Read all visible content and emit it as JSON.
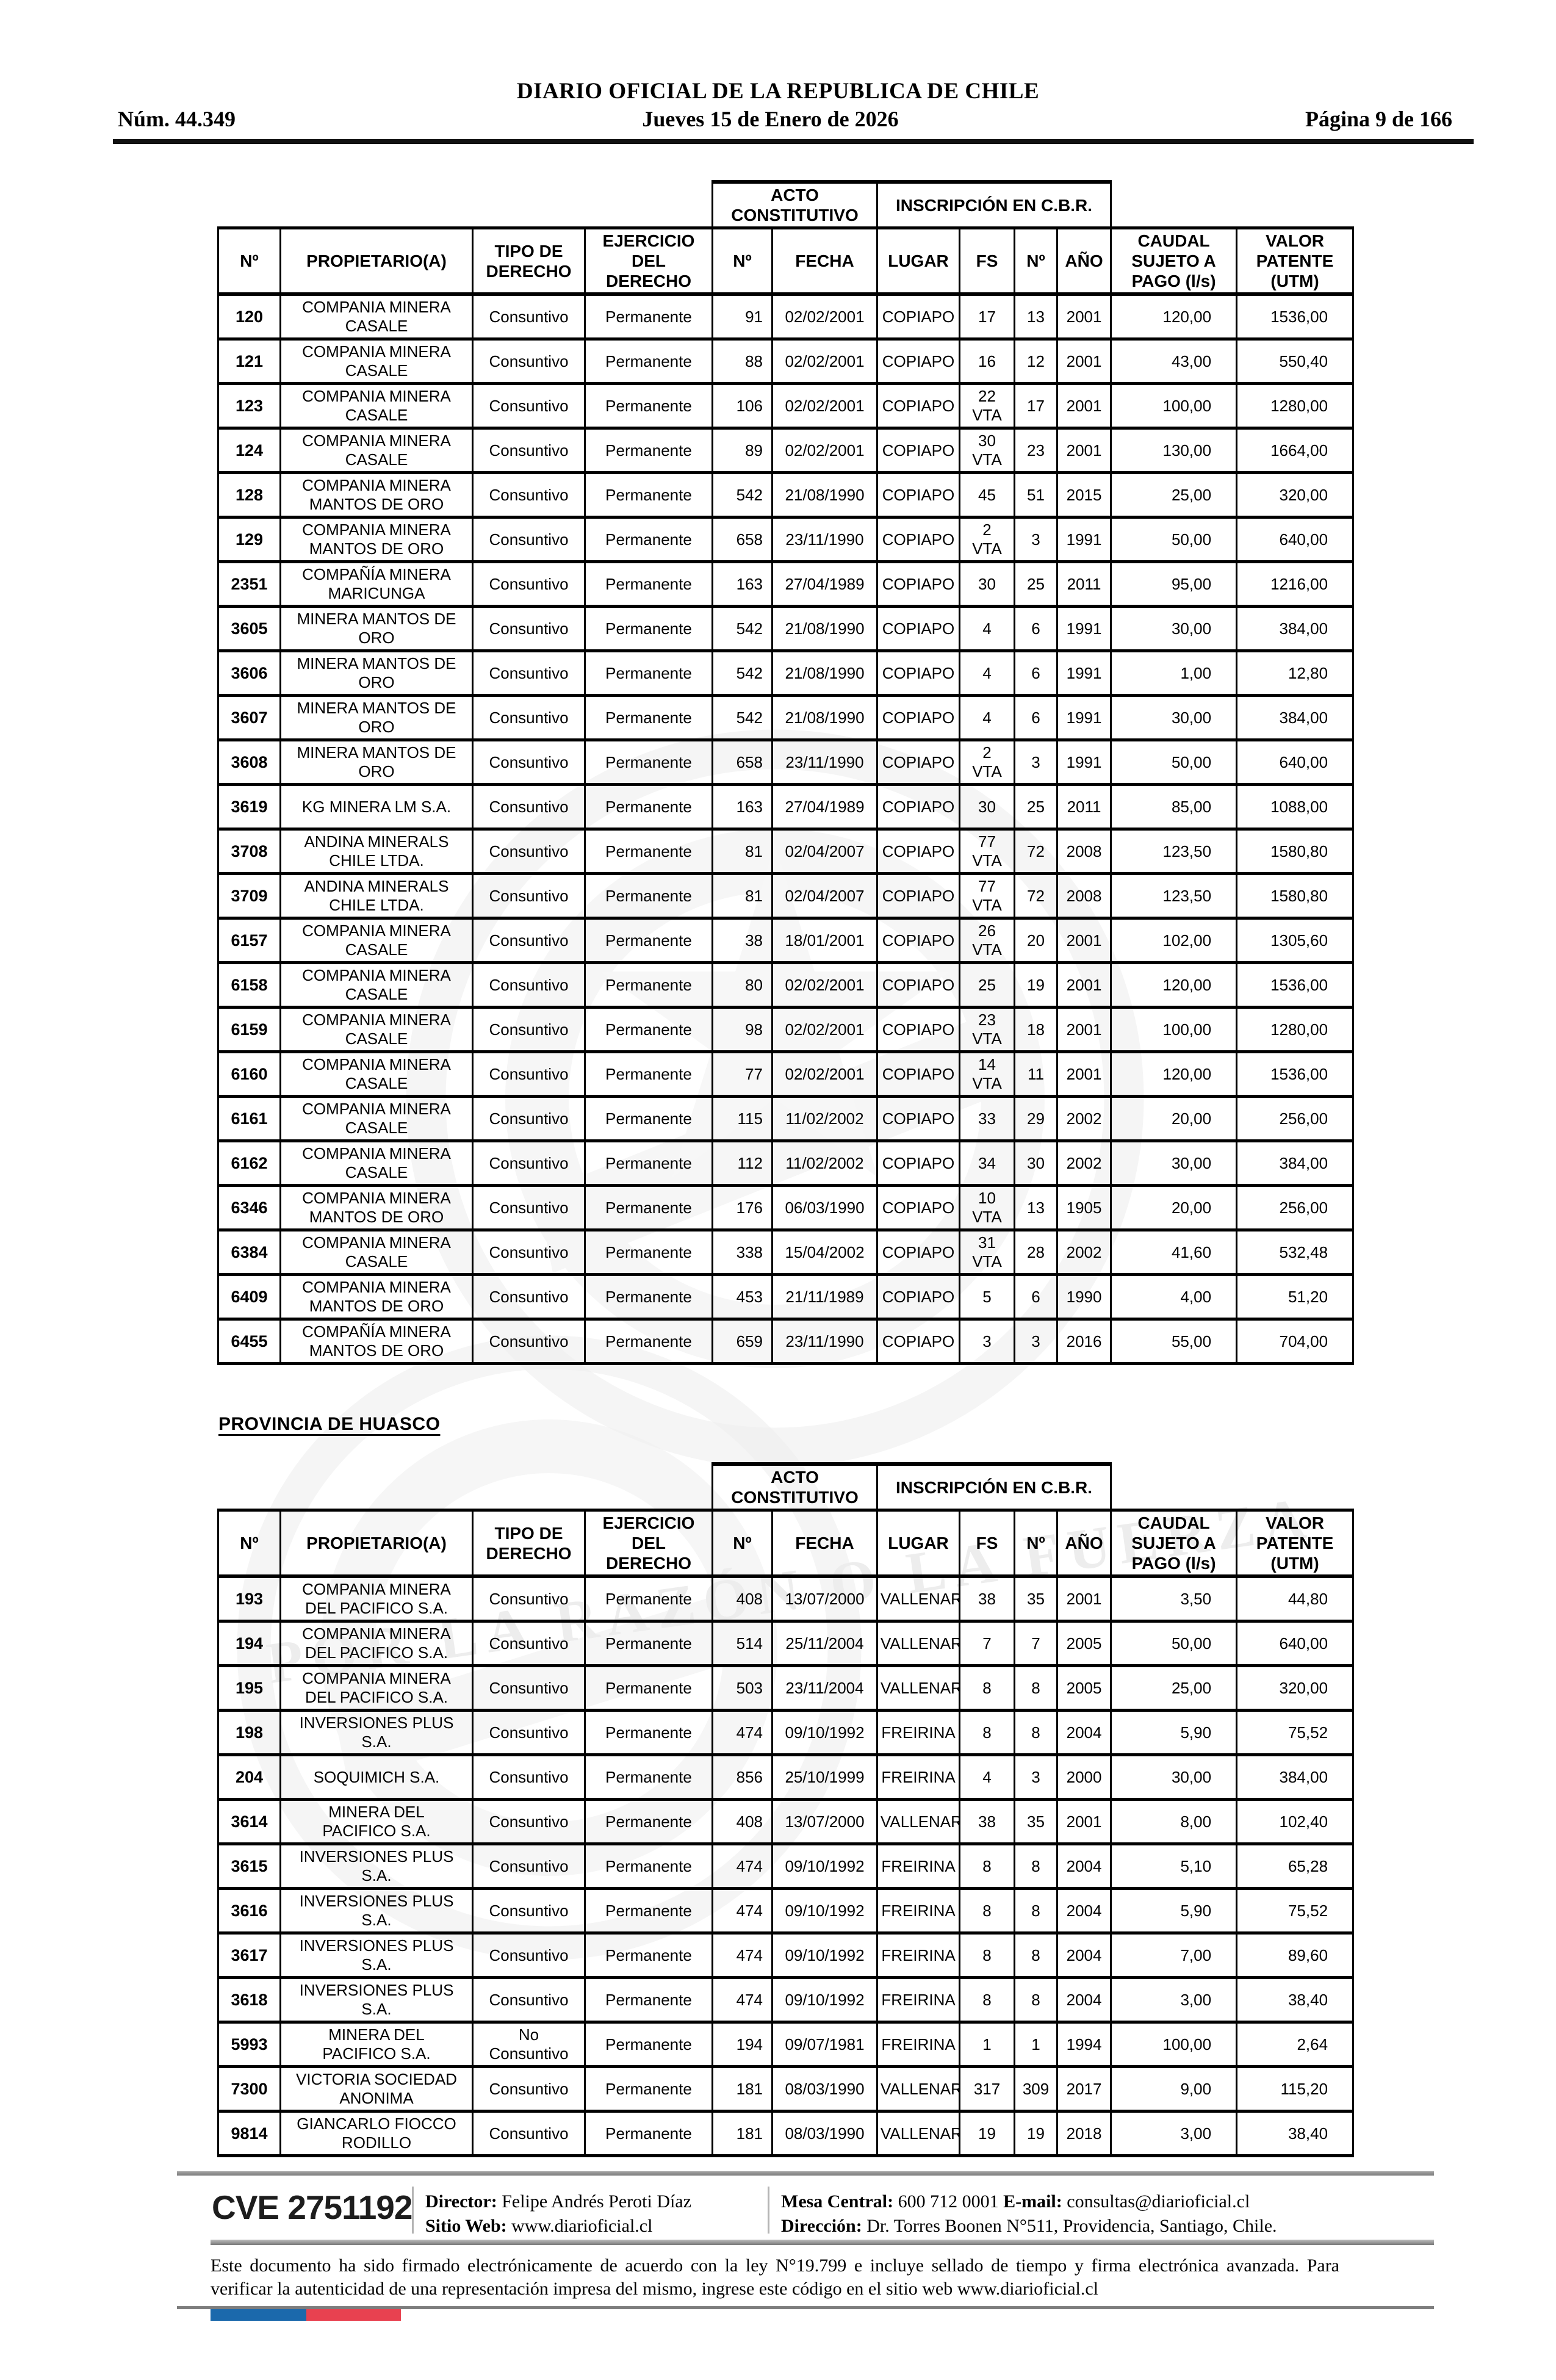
{
  "header": {
    "issue": "Núm. 44.349",
    "title": "DIARIO OFICIAL DE LA REPUBLICA DE CHILE",
    "date": "Jueves 15 de Enero de 2026",
    "page": "Página 9 de 166"
  },
  "group_headers": {
    "acto": "ACTO\nCONSTITUTIVO",
    "inscripcion": "INSCRIPCIÓN EN C.B.R."
  },
  "columns": [
    "Nº",
    "PROPIETARIO(A)",
    "TIPO DE\nDERECHO",
    "EJERCICIO\nDEL\nDERECHO",
    "Nº",
    "FECHA",
    "LUGAR",
    "FS",
    "Nº",
    "AÑO",
    "CAUDAL\nSUJETO A\nPAGO (l/s)",
    "VALOR\nPATENTE\n(UTM)"
  ],
  "section2_title": "PROVINCIA DE HUASCO",
  "watermark_motto": "POR LA RAZÓN O LA FUERZA",
  "table1": {
    "rows": [
      [
        "120",
        "COMPANIA MINERA\nCASALE",
        "Consuntivo",
        "Permanente",
        "91",
        "02/02/2001",
        "COPIAPO",
        "17",
        "13",
        "2001",
        "120,00",
        "1536,00"
      ],
      [
        "121",
        "COMPANIA MINERA\nCASALE",
        "Consuntivo",
        "Permanente",
        "88",
        "02/02/2001",
        "COPIAPO",
        "16",
        "12",
        "2001",
        "43,00",
        "550,40"
      ],
      [
        "123",
        "COMPANIA MINERA\nCASALE",
        "Consuntivo",
        "Permanente",
        "106",
        "02/02/2001",
        "COPIAPO",
        "22\nVTA",
        "17",
        "2001",
        "100,00",
        "1280,00"
      ],
      [
        "124",
        "COMPANIA MINERA\nCASALE",
        "Consuntivo",
        "Permanente",
        "89",
        "02/02/2001",
        "COPIAPO",
        "30\nVTA",
        "23",
        "2001",
        "130,00",
        "1664,00"
      ],
      [
        "128",
        "COMPANIA MINERA\nMANTOS DE ORO",
        "Consuntivo",
        "Permanente",
        "542",
        "21/08/1990",
        "COPIAPO",
        "45",
        "51",
        "2015",
        "25,00",
        "320,00"
      ],
      [
        "129",
        "COMPANIA MINERA\nMANTOS DE ORO",
        "Consuntivo",
        "Permanente",
        "658",
        "23/11/1990",
        "COPIAPO",
        "2\nVTA",
        "3",
        "1991",
        "50,00",
        "640,00"
      ],
      [
        "2351",
        "COMPAÑÍA MINERA\nMARICUNGA",
        "Consuntivo",
        "Permanente",
        "163",
        "27/04/1989",
        "COPIAPO",
        "30",
        "25",
        "2011",
        "95,00",
        "1216,00"
      ],
      [
        "3605",
        "MINERA MANTOS DE\nORO",
        "Consuntivo",
        "Permanente",
        "542",
        "21/08/1990",
        "COPIAPO",
        "4",
        "6",
        "1991",
        "30,00",
        "384,00"
      ],
      [
        "3606",
        "MINERA MANTOS DE\nORO",
        "Consuntivo",
        "Permanente",
        "542",
        "21/08/1990",
        "COPIAPO",
        "4",
        "6",
        "1991",
        "1,00",
        "12,80"
      ],
      [
        "3607",
        "MINERA MANTOS DE\nORO",
        "Consuntivo",
        "Permanente",
        "542",
        "21/08/1990",
        "COPIAPO",
        "4",
        "6",
        "1991",
        "30,00",
        "384,00"
      ],
      [
        "3608",
        "MINERA MANTOS DE\nORO",
        "Consuntivo",
        "Permanente",
        "658",
        "23/11/1990",
        "COPIAPO",
        "2\nVTA",
        "3",
        "1991",
        "50,00",
        "640,00"
      ],
      [
        "3619",
        "KG MINERA LM S.A.",
        "Consuntivo",
        "Permanente",
        "163",
        "27/04/1989",
        "COPIAPO",
        "30",
        "25",
        "2011",
        "85,00",
        "1088,00"
      ],
      [
        "3708",
        "ANDINA MINERALS\nCHILE LTDA.",
        "Consuntivo",
        "Permanente",
        "81",
        "02/04/2007",
        "COPIAPO",
        "77\nVTA",
        "72",
        "2008",
        "123,50",
        "1580,80"
      ],
      [
        "3709",
        "ANDINA MINERALS\nCHILE LTDA.",
        "Consuntivo",
        "Permanente",
        "81",
        "02/04/2007",
        "COPIAPO",
        "77\nVTA",
        "72",
        "2008",
        "123,50",
        "1580,80"
      ],
      [
        "6157",
        "COMPANIA MINERA\nCASALE",
        "Consuntivo",
        "Permanente",
        "38",
        "18/01/2001",
        "COPIAPO",
        "26\nVTA",
        "20",
        "2001",
        "102,00",
        "1305,60"
      ],
      [
        "6158",
        "COMPANIA MINERA\nCASALE",
        "Consuntivo",
        "Permanente",
        "80",
        "02/02/2001",
        "COPIAPO",
        "25",
        "19",
        "2001",
        "120,00",
        "1536,00"
      ],
      [
        "6159",
        "COMPANIA MINERA\nCASALE",
        "Consuntivo",
        "Permanente",
        "98",
        "02/02/2001",
        "COPIAPO",
        "23\nVTA",
        "18",
        "2001",
        "100,00",
        "1280,00"
      ],
      [
        "6160",
        "COMPANIA MINERA\nCASALE",
        "Consuntivo",
        "Permanente",
        "77",
        "02/02/2001",
        "COPIAPO",
        "14\nVTA",
        "11",
        "2001",
        "120,00",
        "1536,00"
      ],
      [
        "6161",
        "COMPANIA MINERA\nCASALE",
        "Consuntivo",
        "Permanente",
        "115",
        "11/02/2002",
        "COPIAPO",
        "33",
        "29",
        "2002",
        "20,00",
        "256,00"
      ],
      [
        "6162",
        "COMPANIA MINERA\nCASALE",
        "Consuntivo",
        "Permanente",
        "112",
        "11/02/2002",
        "COPIAPO",
        "34",
        "30",
        "2002",
        "30,00",
        "384,00"
      ],
      [
        "6346",
        "COMPANIA MINERA\nMANTOS DE ORO",
        "Consuntivo",
        "Permanente",
        "176",
        "06/03/1990",
        "COPIAPO",
        "10\nVTA",
        "13",
        "1905",
        "20,00",
        "256,00"
      ],
      [
        "6384",
        "COMPANIA MINERA\nCASALE",
        "Consuntivo",
        "Permanente",
        "338",
        "15/04/2002",
        "COPIAPO",
        "31\nVTA",
        "28",
        "2002",
        "41,60",
        "532,48"
      ],
      [
        "6409",
        "COMPANIA MINERA\nMANTOS DE ORO",
        "Consuntivo",
        "Permanente",
        "453",
        "21/11/1989",
        "COPIAPO",
        "5",
        "6",
        "1990",
        "4,00",
        "51,20"
      ],
      [
        "6455",
        "COMPAÑÍA MINERA\nMANTOS DE ORO",
        "Consuntivo",
        "Permanente",
        "659",
        "23/11/1990",
        "COPIAPO",
        "3",
        "3",
        "2016",
        "55,00",
        "704,00"
      ]
    ]
  },
  "table2": {
    "rows": [
      [
        "193",
        "COMPANIA MINERA\nDEL PACIFICO S.A.",
        "Consuntivo",
        "Permanente",
        "408",
        "13/07/2000",
        "VALLENAR",
        "38",
        "35",
        "2001",
        "3,50",
        "44,80"
      ],
      [
        "194",
        "COMPANIA MINERA\nDEL PACIFICO S.A.",
        "Consuntivo",
        "Permanente",
        "514",
        "25/11/2004",
        "VALLENAR",
        "7",
        "7",
        "2005",
        "50,00",
        "640,00"
      ],
      [
        "195",
        "COMPANIA MINERA\nDEL PACIFICO S.A.",
        "Consuntivo",
        "Permanente",
        "503",
        "23/11/2004",
        "VALLENAR",
        "8",
        "8",
        "2005",
        "25,00",
        "320,00"
      ],
      [
        "198",
        "INVERSIONES PLUS\nS.A.",
        "Consuntivo",
        "Permanente",
        "474",
        "09/10/1992",
        "FREIRINA",
        "8",
        "8",
        "2004",
        "5,90",
        "75,52"
      ],
      [
        "204",
        "SOQUIMICH S.A.",
        "Consuntivo",
        "Permanente",
        "856",
        "25/10/1999",
        "FREIRINA",
        "4",
        "3",
        "2000",
        "30,00",
        "384,00"
      ],
      [
        "3614",
        "MINERA DEL\nPACIFICO S.A.",
        "Consuntivo",
        "Permanente",
        "408",
        "13/07/2000",
        "VALLENAR",
        "38",
        "35",
        "2001",
        "8,00",
        "102,40"
      ],
      [
        "3615",
        "INVERSIONES PLUS\nS.A.",
        "Consuntivo",
        "Permanente",
        "474",
        "09/10/1992",
        "FREIRINA",
        "8",
        "8",
        "2004",
        "5,10",
        "65,28"
      ],
      [
        "3616",
        "INVERSIONES PLUS\nS.A.",
        "Consuntivo",
        "Permanente",
        "474",
        "09/10/1992",
        "FREIRINA",
        "8",
        "8",
        "2004",
        "5,90",
        "75,52"
      ],
      [
        "3617",
        "INVERSIONES PLUS\nS.A.",
        "Consuntivo",
        "Permanente",
        "474",
        "09/10/1992",
        "FREIRINA",
        "8",
        "8",
        "2004",
        "7,00",
        "89,60"
      ],
      [
        "3618",
        "INVERSIONES PLUS\nS.A.",
        "Consuntivo",
        "Permanente",
        "474",
        "09/10/1992",
        "FREIRINA",
        "8",
        "8",
        "2004",
        "3,00",
        "38,40"
      ],
      [
        "5993",
        "MINERA DEL\nPACIFICO S.A.",
        "No\nConsuntivo",
        "Permanente",
        "194",
        "09/07/1981",
        "FREIRINA",
        "1",
        "1",
        "1994",
        "100,00",
        "2,64"
      ],
      [
        "7300",
        "VICTORIA SOCIEDAD\nANONIMA",
        "Consuntivo",
        "Permanente",
        "181",
        "08/03/1990",
        "VALLENAR",
        "317",
        "309",
        "2017",
        "9,00",
        "115,20"
      ],
      [
        "9814",
        "GIANCARLO FIOCCO\nRODILLO",
        "Consuntivo",
        "Permanente",
        "181",
        "08/03/1990",
        "VALLENAR",
        "19",
        "19",
        "2018",
        "3,00",
        "38,40"
      ]
    ]
  },
  "footer": {
    "cve": "CVE 2751192",
    "director_label": "Director:",
    "director": "Felipe Andrés Peroti Díaz",
    "sitio_label": "Sitio Web:",
    "sitio": "www.diarioficial.cl",
    "mesa_label": "Mesa Central:",
    "mesa": "600 712 0001",
    "email_label": "E-mail:",
    "email": "consultas@diarioficial.cl",
    "direccion_label": "Dirección:",
    "direccion": "Dr. Torres Boonen N°511, Providencia, Santiago, Chile."
  },
  "disclaimer": "Este documento ha sido firmado electrónicamente de acuerdo con la ley N°19.799 e incluye sellado de tiempo y firma electrónica avanzada. Para verificar la autenticidad de una representación impresa del mismo, ingrese este código en el sitio web www.diarioficial.cl",
  "colors": {
    "flag_blue": "#1b69ac",
    "flag_red": "#e84150",
    "rule_black": "#111111",
    "separator_gray": "#8a8a8a"
  }
}
